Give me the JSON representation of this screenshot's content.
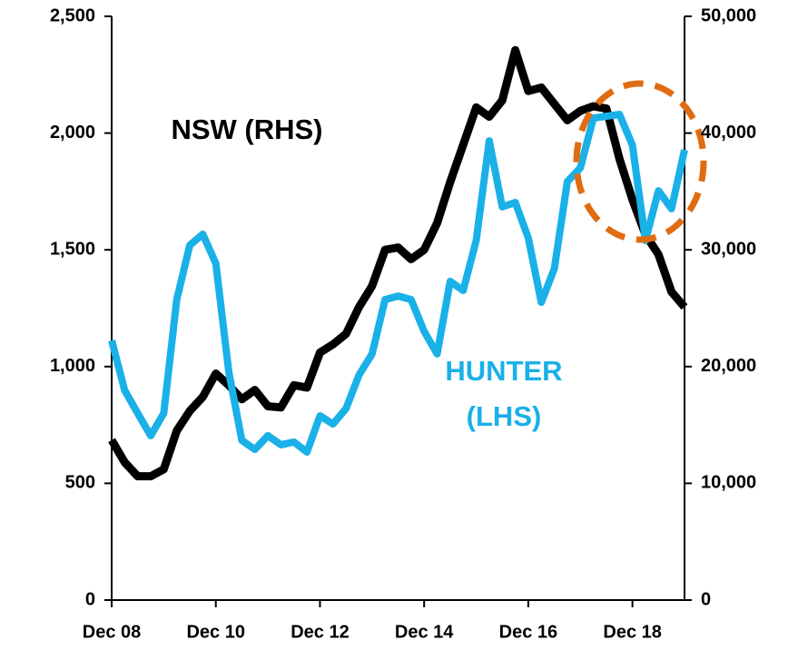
{
  "chart_data": {
    "type": "line",
    "categories": [
      "Dec 08",
      null,
      null,
      null,
      null,
      null,
      null,
      null,
      "Dec 10",
      null,
      null,
      null,
      null,
      null,
      null,
      null,
      "Dec 12",
      null,
      null,
      null,
      null,
      null,
      null,
      null,
      "Dec 14",
      null,
      null,
      null,
      null,
      null,
      null,
      null,
      "Dec 16",
      null,
      null,
      null,
      null,
      null,
      null,
      null,
      "Dec 18",
      null,
      null,
      null,
      null
    ],
    "series": [
      {
        "color": "#000000",
        "axis": "y2",
        "values": [
          13700,
          11800,
          10600,
          10600,
          11200,
          14500,
          16200,
          17400,
          19400,
          18400,
          17200,
          18000,
          16600,
          16500,
          18400,
          18200,
          21200,
          21900,
          22800,
          25100,
          26900,
          30000,
          30200,
          29200,
          30000,
          32300,
          35800,
          39000,
          42200,
          41400,
          42800,
          47100,
          43600,
          43900,
          42500,
          41100,
          41900,
          42300,
          42100,
          37800,
          34300,
          31300,
          29600,
          26400,
          25100
        ]
      },
      {
        "color": "#1ab0e8",
        "axis": "y",
        "values": [
          1112,
          898,
          800,
          704,
          800,
          1287,
          1520,
          1567,
          1442,
          976,
          684,
          645,
          704,
          665,
          677,
          634,
          789,
          754,
          820,
          964,
          1054,
          1287,
          1302,
          1287,
          1151,
          1054,
          1365,
          1326,
          1540,
          1967,
          1684,
          1703,
          1551,
          1275,
          1419,
          1792,
          1851,
          2064,
          2072,
          2080,
          1948,
          1540,
          1753,
          1676,
          1928
        ]
      }
    ],
    "annotations": [
      {
        "lines": [
          "NSW (RHS)"
        ],
        "color": "#000000"
      },
      {
        "lines": [
          "HUNTER",
          "(LHS)"
        ],
        "color": "#1ab0e8"
      }
    ],
    "ylim": [
      0,
      2500
    ],
    "yticks": [
      0,
      500,
      {
        "value": 1000,
        "label": "1,000"
      },
      {
        "value": 1500,
        "label": "1,500"
      },
      {
        "value": 2000,
        "label": "2,000"
      },
      {
        "value": 2500,
        "label": "2,500"
      }
    ],
    "y2lim": [
      0,
      50000
    ],
    "y2ticks": [
      0,
      {
        "value": 10000,
        "label": "10,000"
      },
      {
        "value": 20000,
        "label": "20,000"
      },
      {
        "value": 30000,
        "label": "30,000"
      },
      {
        "value": 40000,
        "label": "40,000"
      },
      {
        "value": 50000,
        "label": "50,000"
      }
    ],
    "grid": false
  }
}
